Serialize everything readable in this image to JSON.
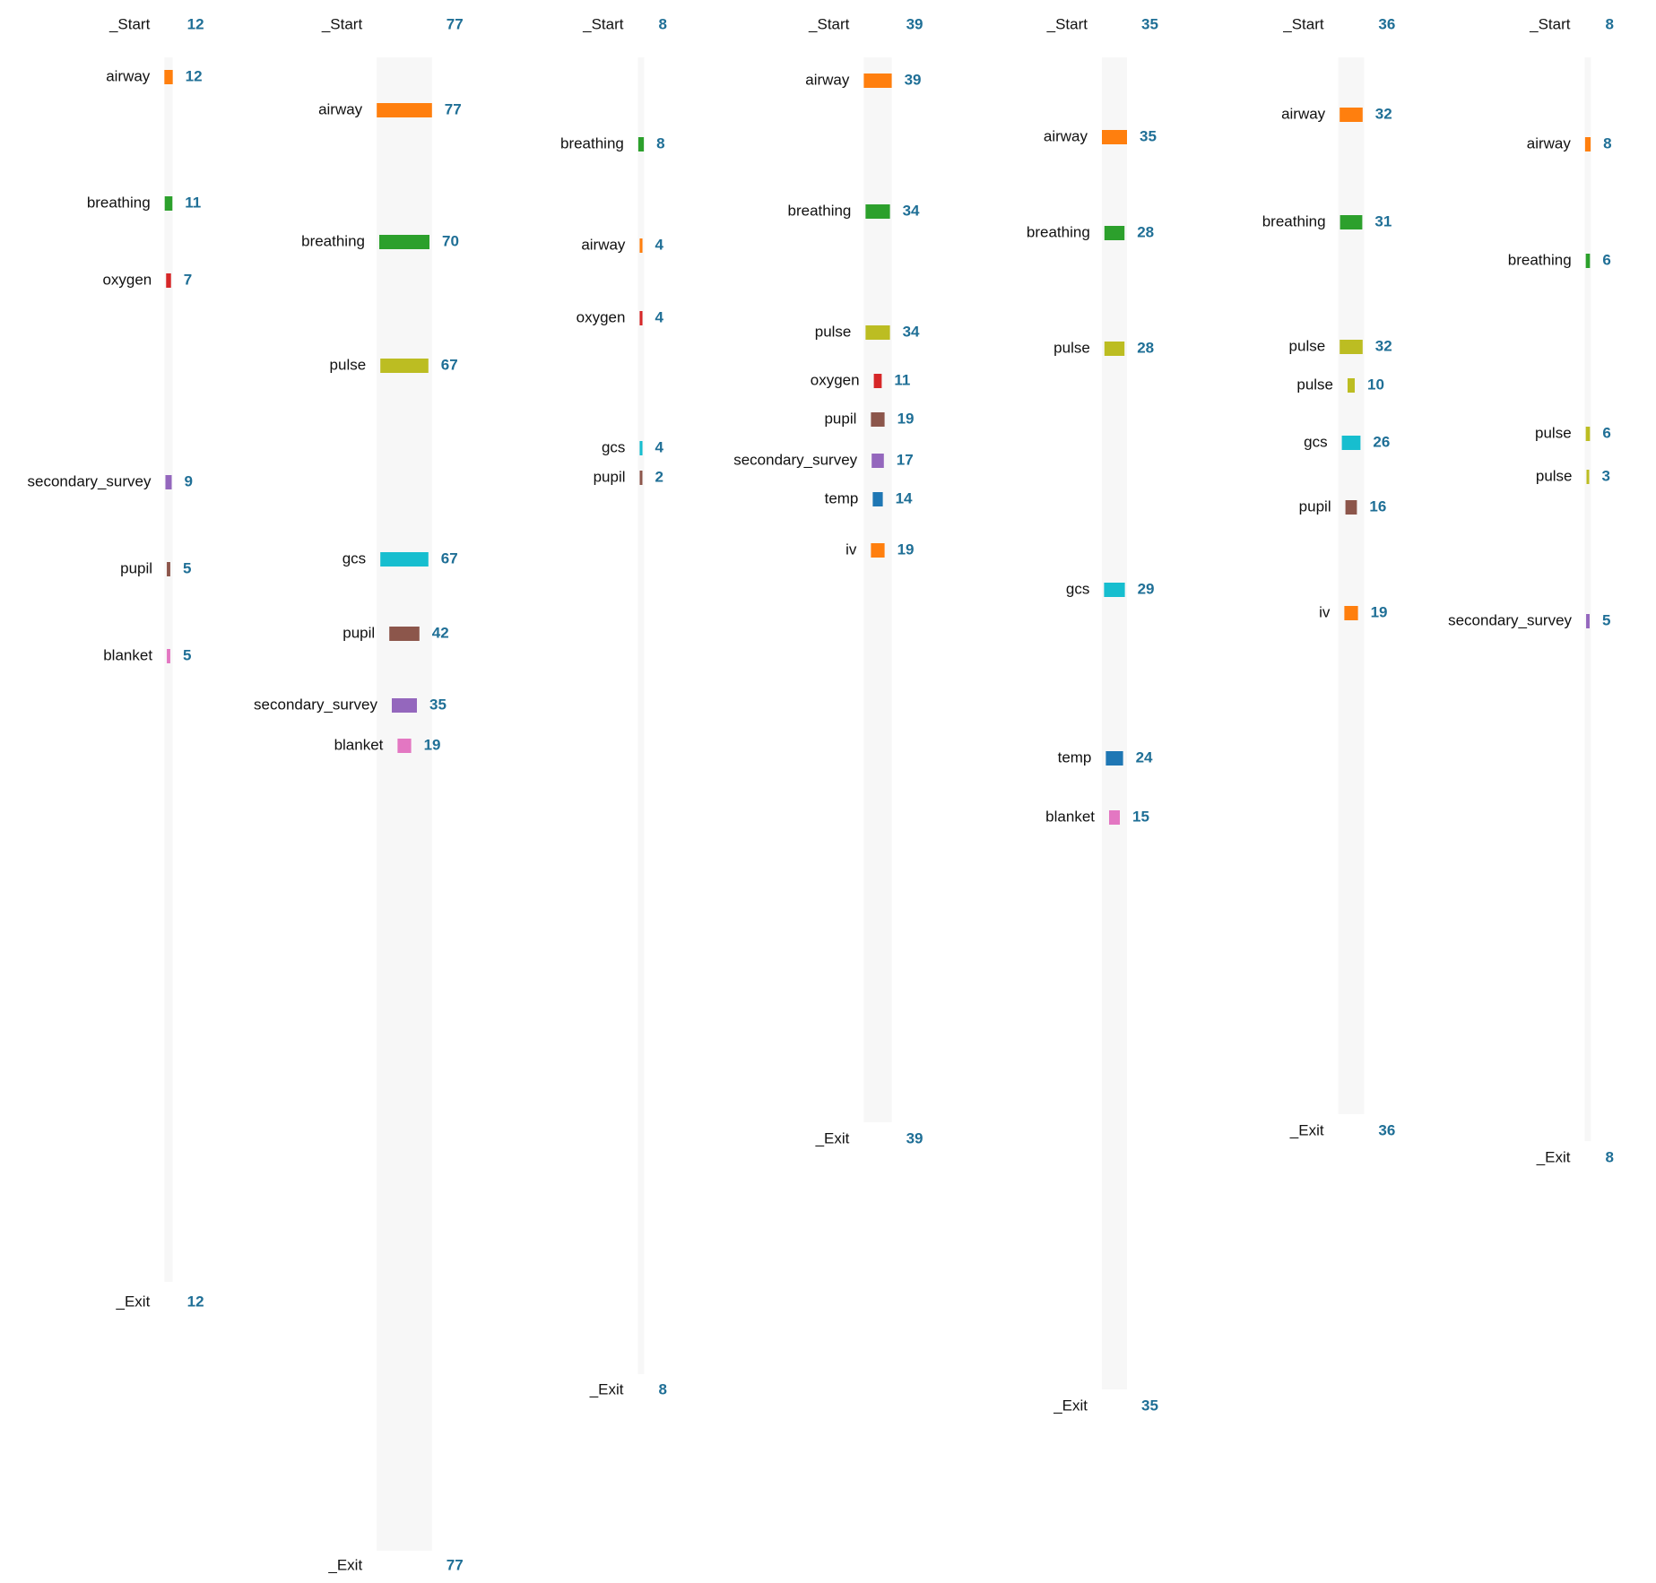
{
  "chart_data": {
    "type": "bar",
    "colors": {
      "airway": "#ff7f0e",
      "breathing": "#2ca02c",
      "oxygen": "#d62728",
      "pulse": "#bcbd22",
      "secondary_survey": "#9467bd",
      "pupil": "#8c564b",
      "blanket": "#e377c2",
      "gcs": "#17becf",
      "temp": "#1f77b4",
      "iv": "#ff7f0e",
      "track": "#f7f7f7",
      "count_text": "#1f6f96"
    },
    "columns": [
      {
        "start": {
          "label": "_Start",
          "count": 12
        },
        "exit": {
          "label": "_Exit",
          "count": 12
        },
        "steps": [
          {
            "label": "airway",
            "count": 12
          },
          {
            "label": "breathing",
            "count": 11
          },
          {
            "label": "oxygen",
            "count": 7
          },
          {
            "label": "secondary_survey",
            "count": 9
          },
          {
            "label": "pupil",
            "count": 5
          },
          {
            "label": "blanket",
            "count": 5
          }
        ]
      },
      {
        "start": {
          "label": "_Start",
          "count": 77
        },
        "exit": {
          "label": "_Exit",
          "count": 77
        },
        "steps": [
          {
            "label": "airway",
            "count": 77
          },
          {
            "label": "breathing",
            "count": 70
          },
          {
            "label": "pulse",
            "count": 67
          },
          {
            "label": "gcs",
            "count": 67
          },
          {
            "label": "pupil",
            "count": 42
          },
          {
            "label": "secondary_survey",
            "count": 35
          },
          {
            "label": "blanket",
            "count": 19
          }
        ]
      },
      {
        "start": {
          "label": "_Start",
          "count": 8
        },
        "exit": {
          "label": "_Exit",
          "count": 8
        },
        "steps": [
          {
            "label": "breathing",
            "count": 8
          },
          {
            "label": "airway",
            "count": 4
          },
          {
            "label": "oxygen",
            "count": 4
          },
          {
            "label": "gcs",
            "count": 4
          },
          {
            "label": "pupil",
            "count": 2
          }
        ]
      },
      {
        "start": {
          "label": "_Start",
          "count": 39
        },
        "exit": {
          "label": "_Exit",
          "count": 39
        },
        "steps": [
          {
            "label": "airway",
            "count": 39
          },
          {
            "label": "breathing",
            "count": 34
          },
          {
            "label": "pulse",
            "count": 34
          },
          {
            "label": "oxygen",
            "count": 11
          },
          {
            "label": "pupil",
            "count": 19
          },
          {
            "label": "secondary_survey",
            "count": 17
          },
          {
            "label": "temp",
            "count": 14
          },
          {
            "label": "iv",
            "count": 19
          }
        ]
      },
      {
        "start": {
          "label": "_Start",
          "count": 35
        },
        "exit": {
          "label": "_Exit",
          "count": 35
        },
        "steps": [
          {
            "label": "airway",
            "count": 35
          },
          {
            "label": "breathing",
            "count": 28
          },
          {
            "label": "pulse",
            "count": 28
          },
          {
            "label": "gcs",
            "count": 29
          },
          {
            "label": "temp",
            "count": 24
          },
          {
            "label": "blanket",
            "count": 15
          }
        ]
      },
      {
        "start": {
          "label": "_Start",
          "count": 36
        },
        "exit": {
          "label": "_Exit",
          "count": 36
        },
        "steps": [
          {
            "label": "airway",
            "count": 32
          },
          {
            "label": "breathing",
            "count": 31
          },
          {
            "label": "pulse",
            "count": 32
          },
          {
            "label": "pulse",
            "count": 10
          },
          {
            "label": "gcs",
            "count": 26
          },
          {
            "label": "pupil",
            "count": 16
          },
          {
            "label": "iv",
            "count": 19
          }
        ]
      },
      {
        "start": {
          "label": "_Start",
          "count": 8
        },
        "exit": {
          "label": "_Exit",
          "count": 8
        },
        "steps": [
          {
            "label": "airway",
            "count": 8
          },
          {
            "label": "breathing",
            "count": 6
          },
          {
            "label": "pulse",
            "count": 6
          },
          {
            "label": "pulse",
            "count": 3
          },
          {
            "label": "secondary_survey",
            "count": 5
          }
        ]
      }
    ]
  }
}
